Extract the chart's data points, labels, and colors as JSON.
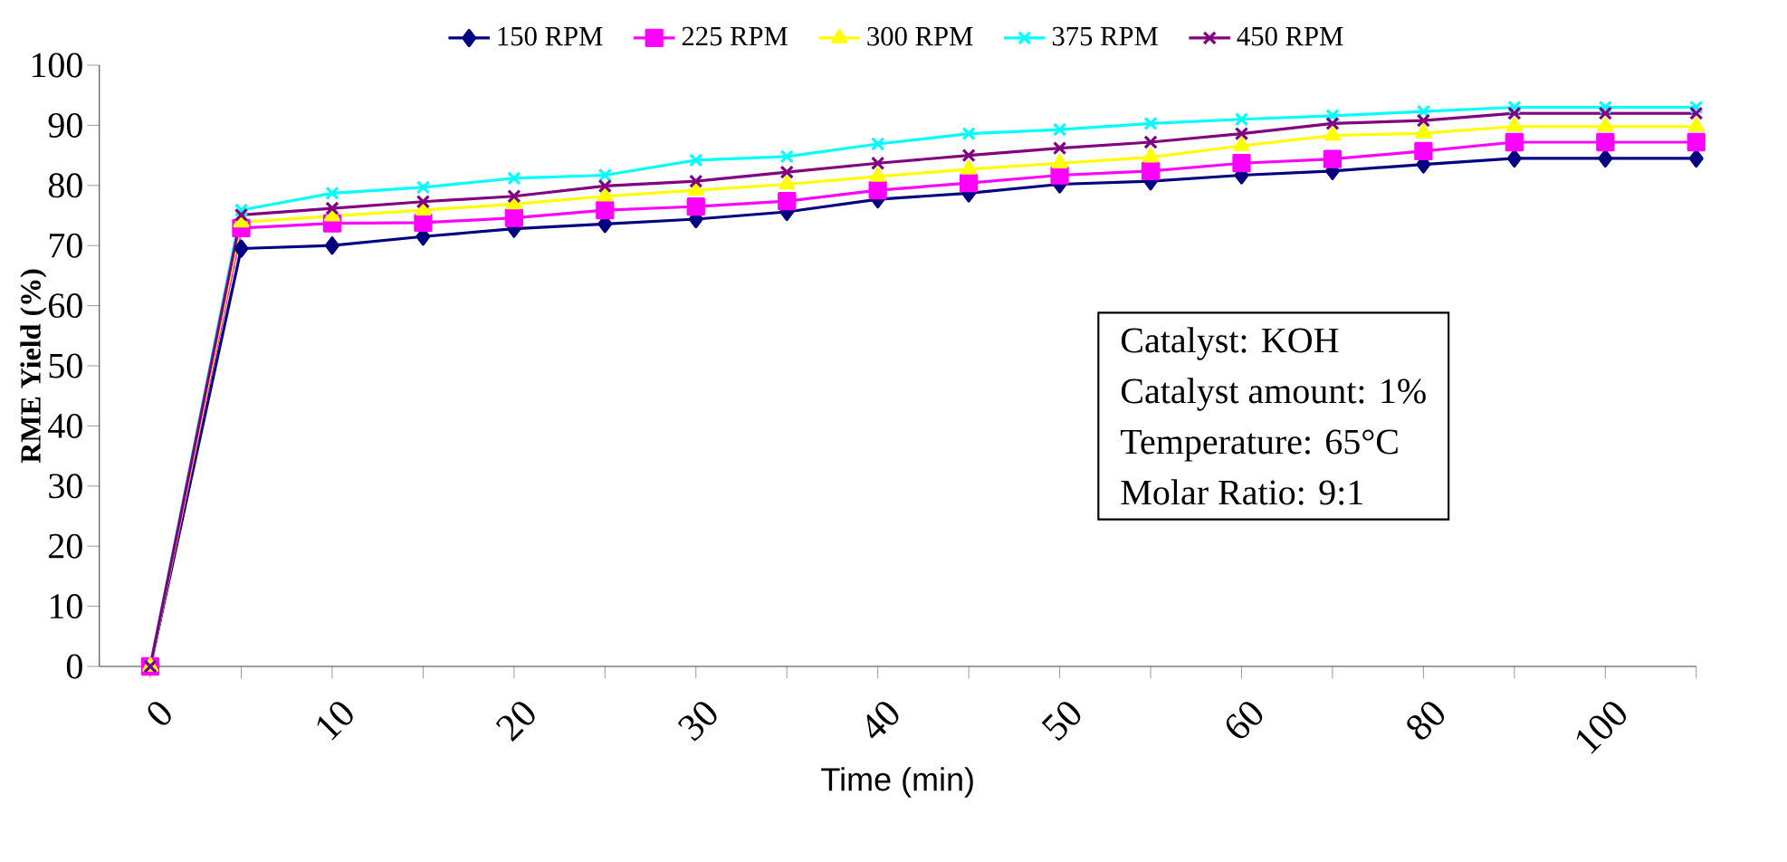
{
  "chart_data": {
    "type": "line",
    "xlabel": "Time (min)",
    "ylabel": "RME Yield (%)",
    "categories": [
      "0",
      null,
      "10",
      null,
      "20",
      null,
      "30",
      null,
      "40",
      null,
      "50",
      null,
      "60",
      null,
      "80",
      null,
      "100",
      null
    ],
    "ylim": [
      0,
      100
    ],
    "yticks": [
      0,
      10,
      20,
      30,
      40,
      50,
      60,
      70,
      80,
      90,
      100
    ],
    "grid": false,
    "legend": "top",
    "line_style": "solid",
    "annotations": [
      "Catalyst: KOH",
      "Catalyst amount: 1%",
      "Temperature: 65°C",
      "Molar Ratio: 9:1"
    ],
    "series": [
      {
        "name": "150 RPM",
        "color": "#000080",
        "marker": "diamond",
        "values": [
          0,
          69.5,
          70,
          71.5,
          72.8,
          73.6,
          74.4,
          75.6,
          77.7,
          78.7,
          80.2,
          80.7,
          81.7,
          82.4,
          83.5,
          84.5,
          84.5,
          84.5
        ]
      },
      {
        "name": "225 RPM",
        "color": "#ff00ff",
        "marker": "square",
        "values": [
          0,
          72.9,
          73.7,
          73.8,
          74.6,
          75.9,
          76.5,
          77.4,
          79.2,
          80.4,
          81.7,
          82.4,
          83.7,
          84.4,
          85.7,
          87.2,
          87.2,
          87.2
        ]
      },
      {
        "name": "300 RPM",
        "color": "#ffff00",
        "marker": "triangle",
        "values": [
          0,
          73.9,
          74.9,
          75.9,
          76.9,
          78.2,
          79.2,
          80.2,
          81.5,
          82.7,
          83.7,
          84.7,
          86.6,
          88.3,
          88.7,
          89.8,
          89.8,
          89.8
        ]
      },
      {
        "name": "375 RPM",
        "color": "#00ffff",
        "marker": "cross",
        "values": [
          0,
          75.9,
          78.7,
          79.7,
          81.2,
          81.7,
          84.2,
          84.8,
          86.9,
          88.6,
          89.3,
          90.3,
          91,
          91.6,
          92.3,
          93,
          93,
          93
        ]
      },
      {
        "name": "450 RPM",
        "color": "#800080",
        "marker": "cross",
        "values": [
          0,
          75.1,
          76.2,
          77.3,
          78.2,
          79.9,
          80.7,
          82.2,
          83.7,
          85,
          86.2,
          87.2,
          88.6,
          90.3,
          90.8,
          92,
          92,
          92
        ]
      }
    ]
  }
}
